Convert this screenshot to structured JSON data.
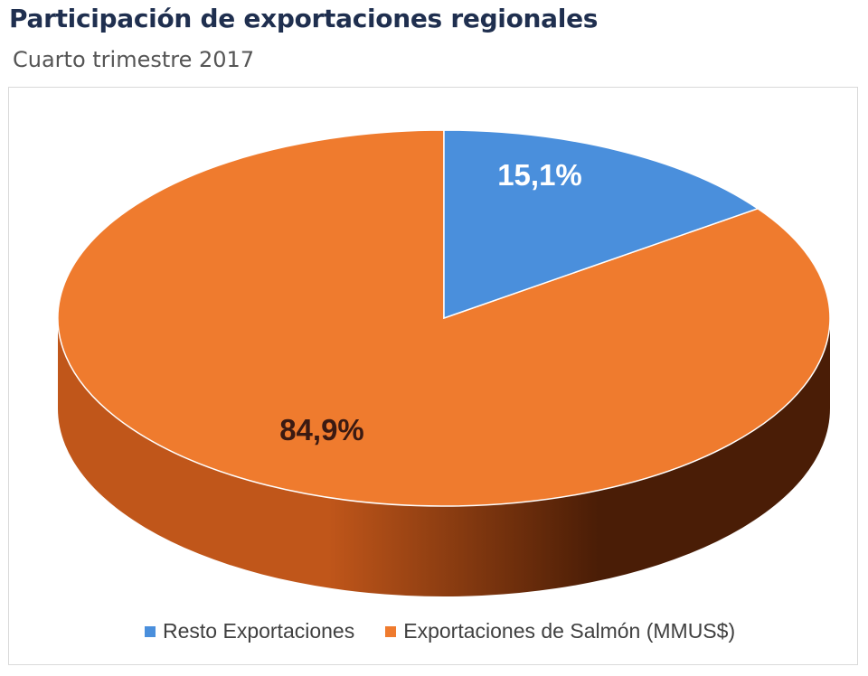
{
  "header": {
    "title": "Participación de exportaciones regionales",
    "subtitle": "Cuarto trimestre  2017"
  },
  "colors": {
    "resto": "#4a8fdc",
    "salmon": "#ef7b2e",
    "salmon_side_dark": "#4a1d06",
    "salmon_side_light": "#c0561a",
    "label_light": "#ffffff",
    "label_dark": "#3b1a12"
  },
  "chart_data": {
    "type": "pie",
    "title": "Participación de exportaciones regionales",
    "subtitle": "Cuarto trimestre  2017",
    "style": "3d",
    "legend_position": "bottom",
    "slices": [
      {
        "label": "Resto Exportaciones",
        "value": 15.1,
        "display": "15,1%"
      },
      {
        "label": "Exportaciones de Salmón (MMUS$)",
        "value": 84.9,
        "display": "84,9%"
      }
    ]
  }
}
